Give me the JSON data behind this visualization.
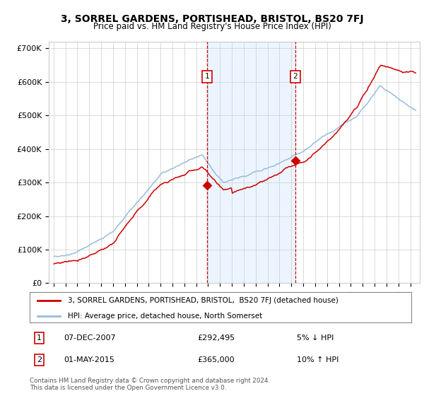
{
  "title": "3, SORREL GARDENS, PORTISHEAD, BRISTOL, BS20 7FJ",
  "subtitle": "Price paid vs. HM Land Registry's House Price Index (HPI)",
  "legend_red": "3, SORREL GARDENS, PORTISHEAD, BRISTOL,  BS20 7FJ (detached house)",
  "legend_blue": "HPI: Average price, detached house, North Somerset",
  "purchase1_label": "07-DEC-2007",
  "purchase1_price_str": "£292,495",
  "purchase1_pct": "5% ↓ HPI",
  "purchase1_year": 2007.92,
  "purchase1_price": 292495,
  "purchase2_label": "01-MAY-2015",
  "purchase2_price_str": "£365,000",
  "purchase2_pct": "10% ↑ HPI",
  "purchase2_year": 2015.33,
  "purchase2_price": 365000,
  "footer": "Contains HM Land Registry data © Crown copyright and database right 2024.\nThis data is licensed under the Open Government Licence v3.0.",
  "red_color": "#cc0000",
  "blue_color": "#99bbdd",
  "shade_color": "#ddeeff",
  "grid_color": "#cccccc",
  "bg_color": "#ffffff",
  "ylim_min": 0,
  "ylim_max": 720000,
  "yticks": [
    0,
    100000,
    200000,
    300000,
    400000,
    500000,
    600000,
    700000
  ],
  "ytick_labels": [
    "£0",
    "£100K",
    "£200K",
    "£300K",
    "£400K",
    "£500K",
    "£600K",
    "£700K"
  ],
  "xlim_min": 1994.6,
  "xlim_max": 2025.8,
  "start_year": 1995,
  "end_year": 2025
}
